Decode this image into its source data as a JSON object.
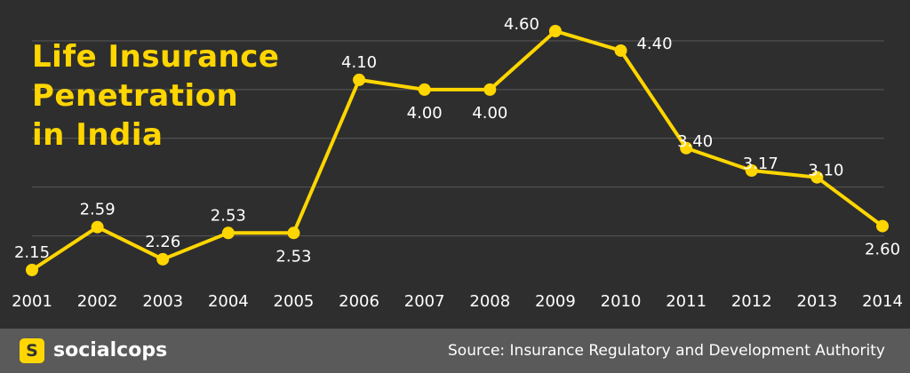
{
  "title_lines": [
    "Life Insurance",
    "Penetration",
    "in India"
  ],
  "footer": {
    "logo_letter": "S",
    "brand": "socialcops",
    "source": "Source: Insurance Regulatory and Development Authority"
  },
  "colors": {
    "background": "#2e2e2e",
    "accent": "#ffd600",
    "footer": "#5a5a5a",
    "gridline": "#585858",
    "text": "#ffffff"
  },
  "chart_data": {
    "type": "line",
    "title": "Life Insurance Penetration in India",
    "xlabel": "",
    "ylabel": "",
    "ylim": [
      2.0,
      4.9
    ],
    "grid": "horizontal",
    "x": [
      "2001",
      "2002",
      "2003",
      "2004",
      "2005",
      "2006",
      "2007",
      "2008",
      "2009",
      "2010",
      "2011",
      "2012",
      "2013",
      "2014"
    ],
    "series": [
      {
        "values": [
          2.15,
          2.59,
          2.26,
          2.53,
          2.53,
          4.1,
          4.0,
          4.0,
          4.6,
          4.4,
          3.4,
          3.17,
          3.1,
          2.6
        ],
        "labels": [
          "2.15",
          "2.59",
          "2.26",
          "2.53",
          "2.53",
          "4.10",
          "4.00",
          "4.00",
          "4.60",
          "4.40",
          "3.40",
          "3.17",
          "3.10",
          "2.60"
        ]
      }
    ]
  }
}
